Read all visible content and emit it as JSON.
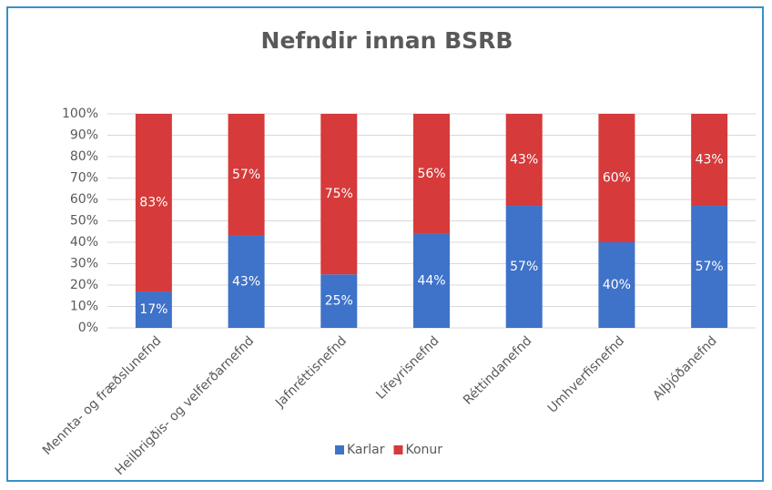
{
  "chart_data": {
    "type": "stacked_bar",
    "title": "Nefndir innan BSRB",
    "categories": [
      "Mennta- og fræðslunefnd",
      "Heilbrigðis- og velferðarnefnd",
      "Jafnréttisnefnd",
      "Lífeyrisnefnd",
      "Réttindanefnd",
      "Umhverfisnefnd",
      "Alþjóðanefnd"
    ],
    "series": [
      {
        "name": "Karlar",
        "color": "#3f72c9",
        "values": [
          17,
          43,
          25,
          44,
          57,
          40,
          57
        ],
        "value_labels": [
          "17%",
          "43%",
          "25%",
          "44%",
          "57%",
          "40%",
          "57%"
        ]
      },
      {
        "name": "Konur",
        "color": "#d63a3a",
        "values": [
          83,
          57,
          75,
          56,
          43,
          60,
          43
        ],
        "value_labels": [
          "83%",
          "57%",
          "75%",
          "56%",
          "43%",
          "60%",
          "43%"
        ]
      }
    ],
    "ylim": [
      0,
      100
    ],
    "yticks": [
      {
        "value": 0,
        "label": "0%"
      },
      {
        "value": 10,
        "label": "10%"
      },
      {
        "value": 20,
        "label": "20%"
      },
      {
        "value": 30,
        "label": "30%"
      },
      {
        "value": 40,
        "label": "40%"
      },
      {
        "value": 50,
        "label": "50%"
      },
      {
        "value": 60,
        "label": "60%"
      },
      {
        "value": 70,
        "label": "70%"
      },
      {
        "value": 80,
        "label": "80%"
      },
      {
        "value": 90,
        "label": "90%"
      },
      {
        "value": 100,
        "label": "100%"
      }
    ],
    "grid": true,
    "legend": "bottom"
  }
}
